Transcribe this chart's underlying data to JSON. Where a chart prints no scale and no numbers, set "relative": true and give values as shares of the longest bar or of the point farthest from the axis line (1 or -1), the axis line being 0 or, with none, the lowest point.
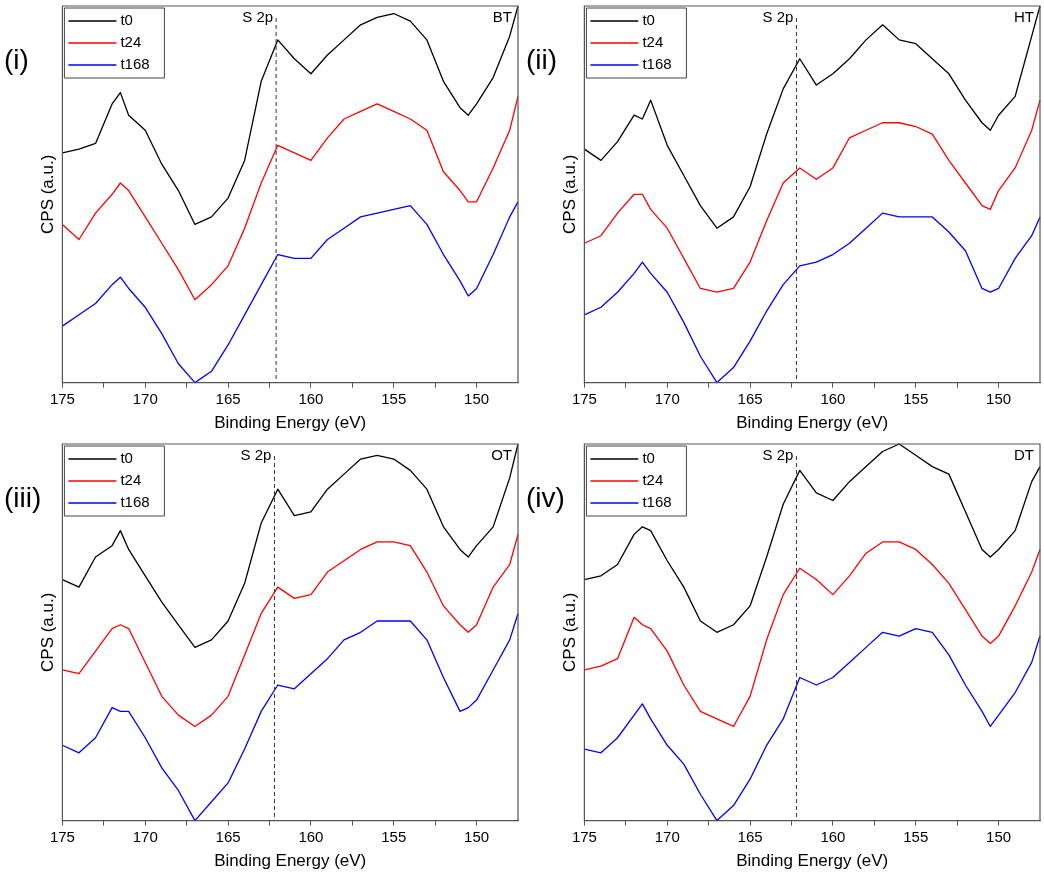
{
  "chart_data": [
    {
      "type": "line",
      "xlabel": "Binding Energy (eV)",
      "ylabel": "CPS (a.u.)",
      "relative": true,
      "legend": "top left",
      "annotations": [
        "(i)",
        "BT"
      ],
      "xlim": [
        175,
        147.5
      ],
      "xticks": [
        175,
        {
          "value": 172.5,
          "label": null
        },
        170,
        {
          "value": 167.5,
          "label": null
        },
        165,
        {
          "value": 162.5,
          "label": null
        },
        160,
        {
          "value": 157.5,
          "label": null
        },
        155,
        {
          "value": 152.5,
          "label": null
        },
        150
      ],
      "ref_lines": [
        {
          "axis": "x",
          "value": 162.1,
          "label": "S 2p",
          "line_style": "dashed",
          "color": "#333333"
        }
      ],
      "x": [
        175,
        174,
        173,
        172,
        171.5,
        171,
        170,
        169,
        168,
        167,
        166,
        165,
        164,
        163,
        162,
        161,
        160,
        159,
        158,
        157,
        156,
        155,
        154,
        153,
        152,
        151,
        150.5,
        150,
        149,
        148,
        147.5
      ],
      "series": [
        {
          "name": "t0",
          "color": "#000000",
          "values": [
            0.61,
            0.62,
            0.635,
            0.74,
            0.77,
            0.71,
            0.67,
            0.58,
            0.51,
            0.42,
            0.44,
            0.49,
            0.59,
            0.8,
            0.91,
            0.86,
            0.82,
            0.87,
            0.91,
            0.95,
            0.97,
            0.98,
            0.96,
            0.91,
            0.8,
            0.73,
            0.71,
            0.74,
            0.81,
            0.92,
            1.0
          ]
        },
        {
          "name": "t24",
          "color": "#ff0000",
          "values": [
            0.42,
            0.38,
            0.45,
            0.5,
            0.53,
            0.51,
            0.44,
            0.37,
            0.3,
            0.22,
            0.26,
            0.31,
            0.41,
            0.53,
            0.63,
            0.61,
            0.59,
            0.65,
            0.7,
            0.72,
            0.74,
            0.72,
            0.7,
            0.67,
            0.56,
            0.51,
            0.48,
            0.48,
            0.57,
            0.67,
            0.76
          ]
        },
        {
          "name": "t168",
          "color": "#0000ff",
          "values": [
            0.15,
            0.18,
            0.21,
            0.26,
            0.28,
            0.25,
            0.2,
            0.13,
            0.05,
            0.0,
            0.03,
            0.1,
            0.18,
            0.26,
            0.34,
            0.33,
            0.33,
            0.38,
            0.41,
            0.44,
            0.45,
            0.46,
            0.47,
            0.42,
            0.34,
            0.27,
            0.23,
            0.25,
            0.34,
            0.44,
            0.48
          ]
        }
      ]
    },
    {
      "type": "line",
      "xlabel": "Binding Energy (eV)",
      "ylabel": "CPS (a.u.)",
      "relative": true,
      "legend": "top left",
      "annotations": [
        "(ii)",
        "HT"
      ],
      "xlim": [
        175,
        147.5
      ],
      "xticks": [
        175,
        {
          "value": 172.5,
          "label": null
        },
        170,
        {
          "value": 167.5,
          "label": null
        },
        165,
        {
          "value": 162.5,
          "label": null
        },
        160,
        {
          "value": 157.5,
          "label": null
        },
        155,
        {
          "value": 152.5,
          "label": null
        },
        150
      ],
      "ref_lines": [
        {
          "axis": "x",
          "value": 162.2,
          "label": "S 2p",
          "line_style": "dashed",
          "color": "#333333"
        }
      ],
      "x": [
        175,
        174,
        173,
        172,
        171.5,
        171,
        170,
        169,
        168,
        167,
        166,
        165,
        164,
        163,
        162,
        161,
        160,
        159,
        158,
        157,
        156,
        155,
        154,
        153,
        152,
        151,
        150.5,
        150,
        149,
        148,
        147.5
      ],
      "series": [
        {
          "name": "t0",
          "color": "#000000",
          "values": [
            0.62,
            0.59,
            0.64,
            0.71,
            0.7,
            0.75,
            0.63,
            0.55,
            0.47,
            0.41,
            0.44,
            0.52,
            0.66,
            0.78,
            0.86,
            0.79,
            0.82,
            0.86,
            0.91,
            0.95,
            0.91,
            0.9,
            0.86,
            0.82,
            0.75,
            0.69,
            0.67,
            0.71,
            0.76,
            0.92,
            1.0
          ]
        },
        {
          "name": "t24",
          "color": "#ff0000",
          "values": [
            0.37,
            0.39,
            0.45,
            0.5,
            0.5,
            0.46,
            0.41,
            0.33,
            0.25,
            0.24,
            0.25,
            0.32,
            0.43,
            0.53,
            0.57,
            0.54,
            0.57,
            0.65,
            0.67,
            0.69,
            0.69,
            0.68,
            0.66,
            0.59,
            0.53,
            0.47,
            0.46,
            0.51,
            0.57,
            0.67,
            0.75
          ]
        },
        {
          "name": "t168",
          "color": "#0000ff",
          "values": [
            0.18,
            0.2,
            0.24,
            0.29,
            0.32,
            0.29,
            0.24,
            0.16,
            0.07,
            0.0,
            0.04,
            0.11,
            0.19,
            0.26,
            0.31,
            0.32,
            0.34,
            0.37,
            0.41,
            0.45,
            0.44,
            0.44,
            0.44,
            0.4,
            0.35,
            0.25,
            0.24,
            0.25,
            0.33,
            0.39,
            0.44
          ]
        }
      ]
    },
    {
      "type": "line",
      "xlabel": "Binding Energy (eV)",
      "ylabel": "CPS (a.u.)",
      "relative": true,
      "legend": "top left",
      "annotations": [
        "(iii)",
        "OT"
      ],
      "xlim": [
        175,
        147.5
      ],
      "xticks": [
        175,
        {
          "value": 172.5,
          "label": null
        },
        170,
        {
          "value": 167.5,
          "label": null
        },
        165,
        {
          "value": 162.5,
          "label": null
        },
        160,
        {
          "value": 157.5,
          "label": null
        },
        155,
        {
          "value": 152.5,
          "label": null
        },
        150
      ],
      "ref_lines": [
        {
          "axis": "x",
          "value": 162.2,
          "label": "S 2p",
          "line_style": "dashed",
          "color": "#333333"
        }
      ],
      "x": [
        175,
        174,
        173,
        172,
        171.5,
        171,
        170,
        169,
        168,
        167,
        166,
        165,
        164,
        163,
        162,
        161,
        160,
        159,
        158,
        157,
        156,
        155,
        154,
        153,
        152,
        151,
        150.5,
        150,
        149,
        148,
        147.5
      ],
      "series": [
        {
          "name": "t0",
          "color": "#000000",
          "values": [
            0.64,
            0.62,
            0.7,
            0.73,
            0.77,
            0.72,
            0.65,
            0.58,
            0.52,
            0.46,
            0.48,
            0.53,
            0.63,
            0.79,
            0.88,
            0.81,
            0.82,
            0.88,
            0.92,
            0.96,
            0.97,
            0.96,
            0.93,
            0.88,
            0.78,
            0.72,
            0.7,
            0.73,
            0.78,
            0.91,
            1.0
          ]
        },
        {
          "name": "t24",
          "color": "#ff0000",
          "values": [
            0.4,
            0.39,
            0.45,
            0.51,
            0.52,
            0.51,
            0.42,
            0.33,
            0.28,
            0.25,
            0.28,
            0.33,
            0.44,
            0.55,
            0.62,
            0.59,
            0.6,
            0.66,
            0.69,
            0.72,
            0.74,
            0.74,
            0.73,
            0.66,
            0.57,
            0.52,
            0.5,
            0.52,
            0.62,
            0.68,
            0.76
          ]
        },
        {
          "name": "t168",
          "color": "#0000ff",
          "values": [
            0.2,
            0.18,
            0.22,
            0.3,
            0.29,
            0.29,
            0.22,
            0.14,
            0.08,
            0.0,
            0.05,
            0.1,
            0.19,
            0.29,
            0.36,
            0.35,
            0.39,
            0.43,
            0.48,
            0.5,
            0.53,
            0.53,
            0.53,
            0.48,
            0.38,
            0.29,
            0.3,
            0.32,
            0.4,
            0.48,
            0.55
          ]
        }
      ]
    },
    {
      "type": "line",
      "xlabel": "Binding Energy (eV)",
      "ylabel": "CPS (a.u.)",
      "relative": true,
      "legend": "top left",
      "annotations": [
        "(iv)",
        "DT"
      ],
      "xlim": [
        175,
        147.5
      ],
      "xticks": [
        175,
        {
          "value": 172.5,
          "label": null
        },
        170,
        {
          "value": 167.5,
          "label": null
        },
        165,
        {
          "value": 162.5,
          "label": null
        },
        160,
        {
          "value": 157.5,
          "label": null
        },
        155,
        {
          "value": 152.5,
          "label": null
        },
        150
      ],
      "ref_lines": [
        {
          "axis": "x",
          "value": 162.2,
          "label": "S 2p",
          "line_style": "dashed",
          "color": "#333333"
        }
      ],
      "x": [
        175,
        174,
        173,
        172,
        171.5,
        171,
        170,
        169,
        168,
        167,
        166,
        165,
        164,
        163,
        162,
        161,
        160,
        159,
        158,
        157,
        156,
        155,
        154,
        153,
        152,
        151,
        150.5,
        150,
        149,
        148,
        147.5
      ],
      "series": [
        {
          "name": "t0",
          "color": "#000000",
          "values": [
            0.64,
            0.65,
            0.68,
            0.76,
            0.78,
            0.77,
            0.69,
            0.62,
            0.53,
            0.5,
            0.52,
            0.57,
            0.7,
            0.84,
            0.93,
            0.87,
            0.85,
            0.9,
            0.94,
            0.98,
            1.0,
            0.97,
            0.94,
            0.92,
            0.82,
            0.72,
            0.7,
            0.72,
            0.77,
            0.9,
            0.94
          ]
        },
        {
          "name": "t24",
          "color": "#ff0000",
          "values": [
            0.4,
            0.41,
            0.43,
            0.54,
            0.52,
            0.51,
            0.45,
            0.36,
            0.29,
            0.27,
            0.25,
            0.33,
            0.48,
            0.6,
            0.67,
            0.64,
            0.6,
            0.65,
            0.71,
            0.74,
            0.74,
            0.72,
            0.68,
            0.63,
            0.56,
            0.49,
            0.47,
            0.49,
            0.57,
            0.66,
            0.72
          ]
        },
        {
          "name": "t168",
          "color": "#0000ff",
          "values": [
            0.19,
            0.18,
            0.22,
            0.28,
            0.31,
            0.27,
            0.2,
            0.15,
            0.07,
            0.0,
            0.04,
            0.11,
            0.2,
            0.27,
            0.38,
            0.36,
            0.38,
            0.42,
            0.46,
            0.5,
            0.49,
            0.51,
            0.5,
            0.44,
            0.36,
            0.29,
            0.25,
            0.28,
            0.34,
            0.42,
            0.49
          ]
        }
      ]
    }
  ]
}
